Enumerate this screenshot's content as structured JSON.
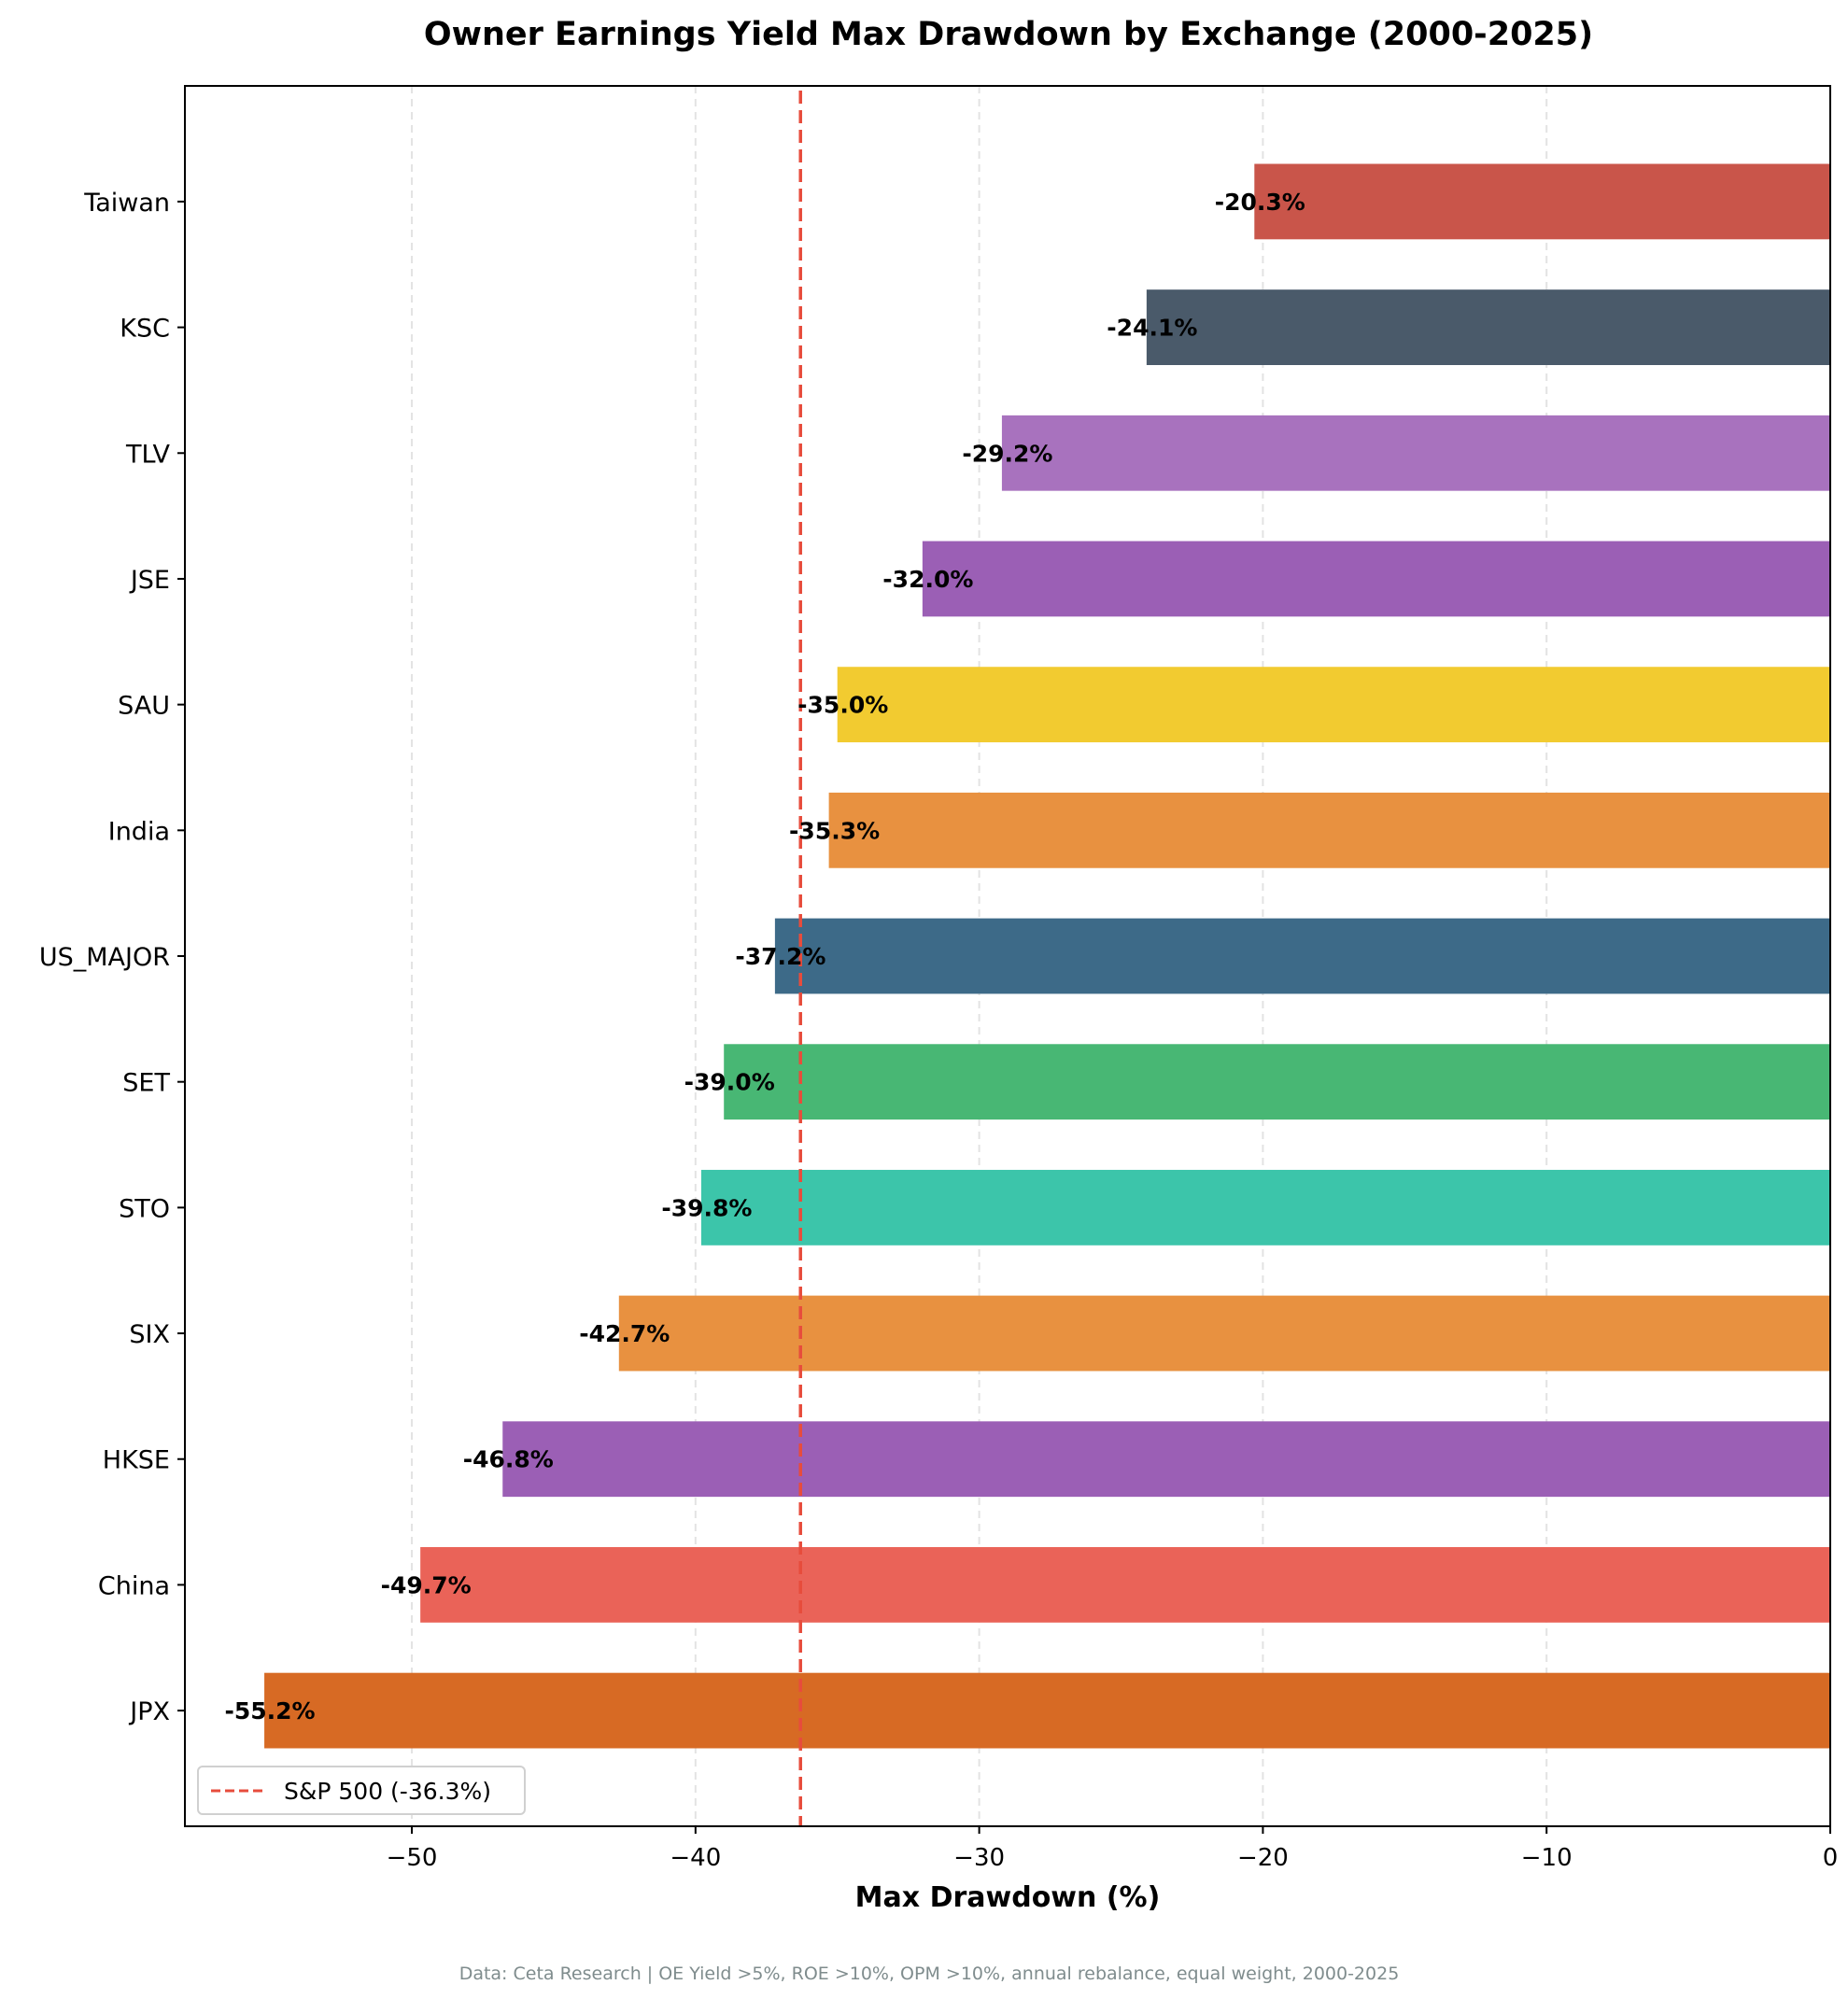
{
  "chart_data": {
    "type": "bar",
    "orientation": "horizontal",
    "title": "Owner Earnings Yield Max Drawdown by Exchange (2000-2025)",
    "xlabel": "Max Drawdown (%)",
    "ylabel": "",
    "xlim": [
      -58,
      0
    ],
    "xticks": [
      -50,
      -40,
      -30,
      -20,
      -10,
      0
    ],
    "xtick_labels": [
      "−50",
      "−40",
      "−30",
      "−20",
      "−10",
      "0"
    ],
    "grid": "x-axis dashed",
    "categories": [
      "Taiwan",
      "KSC",
      "TLV",
      "JSE",
      "SAU",
      "India",
      "US_MAJOR",
      "SET",
      "STO",
      "SIX",
      "HKSE",
      "China",
      "JPX"
    ],
    "values": [
      -20.3,
      -24.1,
      -29.2,
      -32.0,
      -35.0,
      -35.3,
      -37.2,
      -39.0,
      -39.8,
      -42.7,
      -46.8,
      -49.7,
      -55.2
    ],
    "data_labels": [
      "-20.3%",
      "-24.1%",
      "-29.2%",
      "-32.0%",
      "-35.0%",
      "-35.3%",
      "-37.2%",
      "-39.0%",
      "-39.8%",
      "-42.7%",
      "-46.8%",
      "-49.7%",
      "-55.2%"
    ],
    "colors": [
      "#c9554a",
      "#4a5a6a",
      "#a872be",
      "#9b5fb5",
      "#f2cb30",
      "#e89140",
      "#3d6a88",
      "#48b774",
      "#3cc5aa",
      "#e89140",
      "#9b5fb5",
      "#ea6358",
      "#d76a24"
    ],
    "reference_line": {
      "value": -36.3,
      "label": "S&P 500 (-36.3%)",
      "color": "#e74c3c",
      "style": "dashed"
    },
    "legend_placement": "lower-left"
  },
  "footer": "Data: Ceta Research | OE Yield >5%, ROE >10%, OPM >10%, annual rebalance, equal weight, 2000-2025"
}
